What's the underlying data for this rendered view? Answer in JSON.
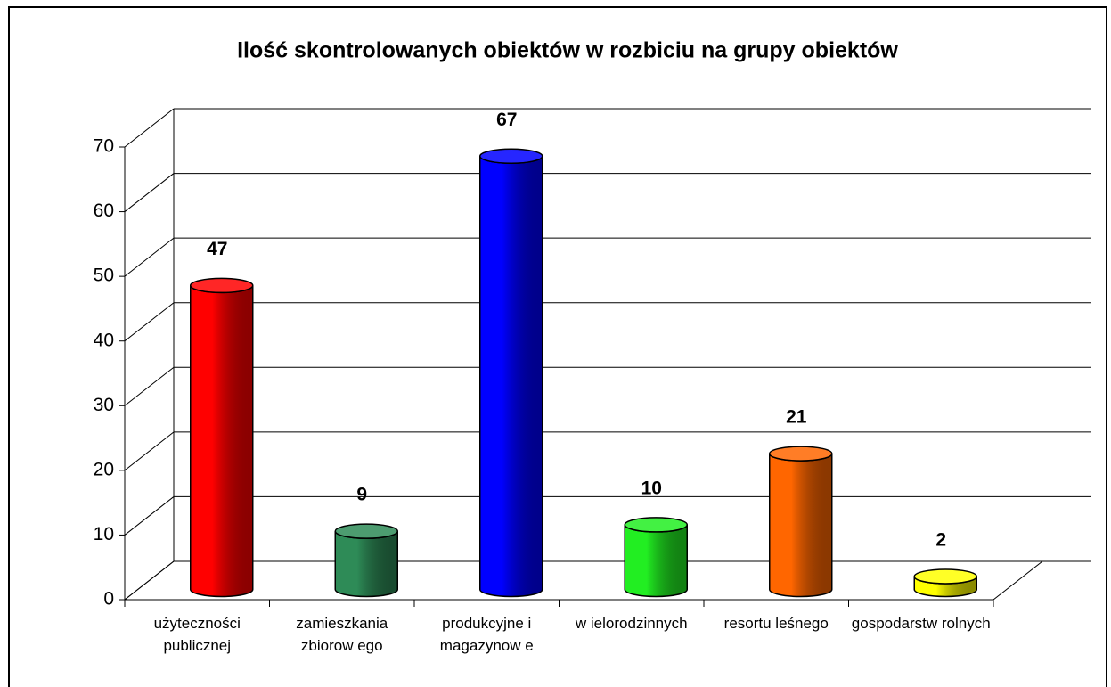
{
  "chart_data": {
    "type": "bar3d",
    "title": "Ilość skontrolowanych obiektów w rozbiciu na grupy obiektów",
    "categories": [
      "użyteczności publicznej",
      "zamieszkania zbiorow ego",
      "produkcyjne i magazynow e",
      "w ielorodzinnych",
      "resortu leśnego",
      "gospodarstw rolnych"
    ],
    "values": [
      47,
      9,
      67,
      10,
      21,
      2
    ],
    "colors": [
      "#ff0000",
      "#2e8b57",
      "#0000ff",
      "#22ee22",
      "#ff6600",
      "#ffff00"
    ],
    "ylim": [
      0,
      70
    ],
    "yticks": [
      0,
      10,
      20,
      30,
      40,
      50,
      60,
      70
    ],
    "grid": true
  }
}
